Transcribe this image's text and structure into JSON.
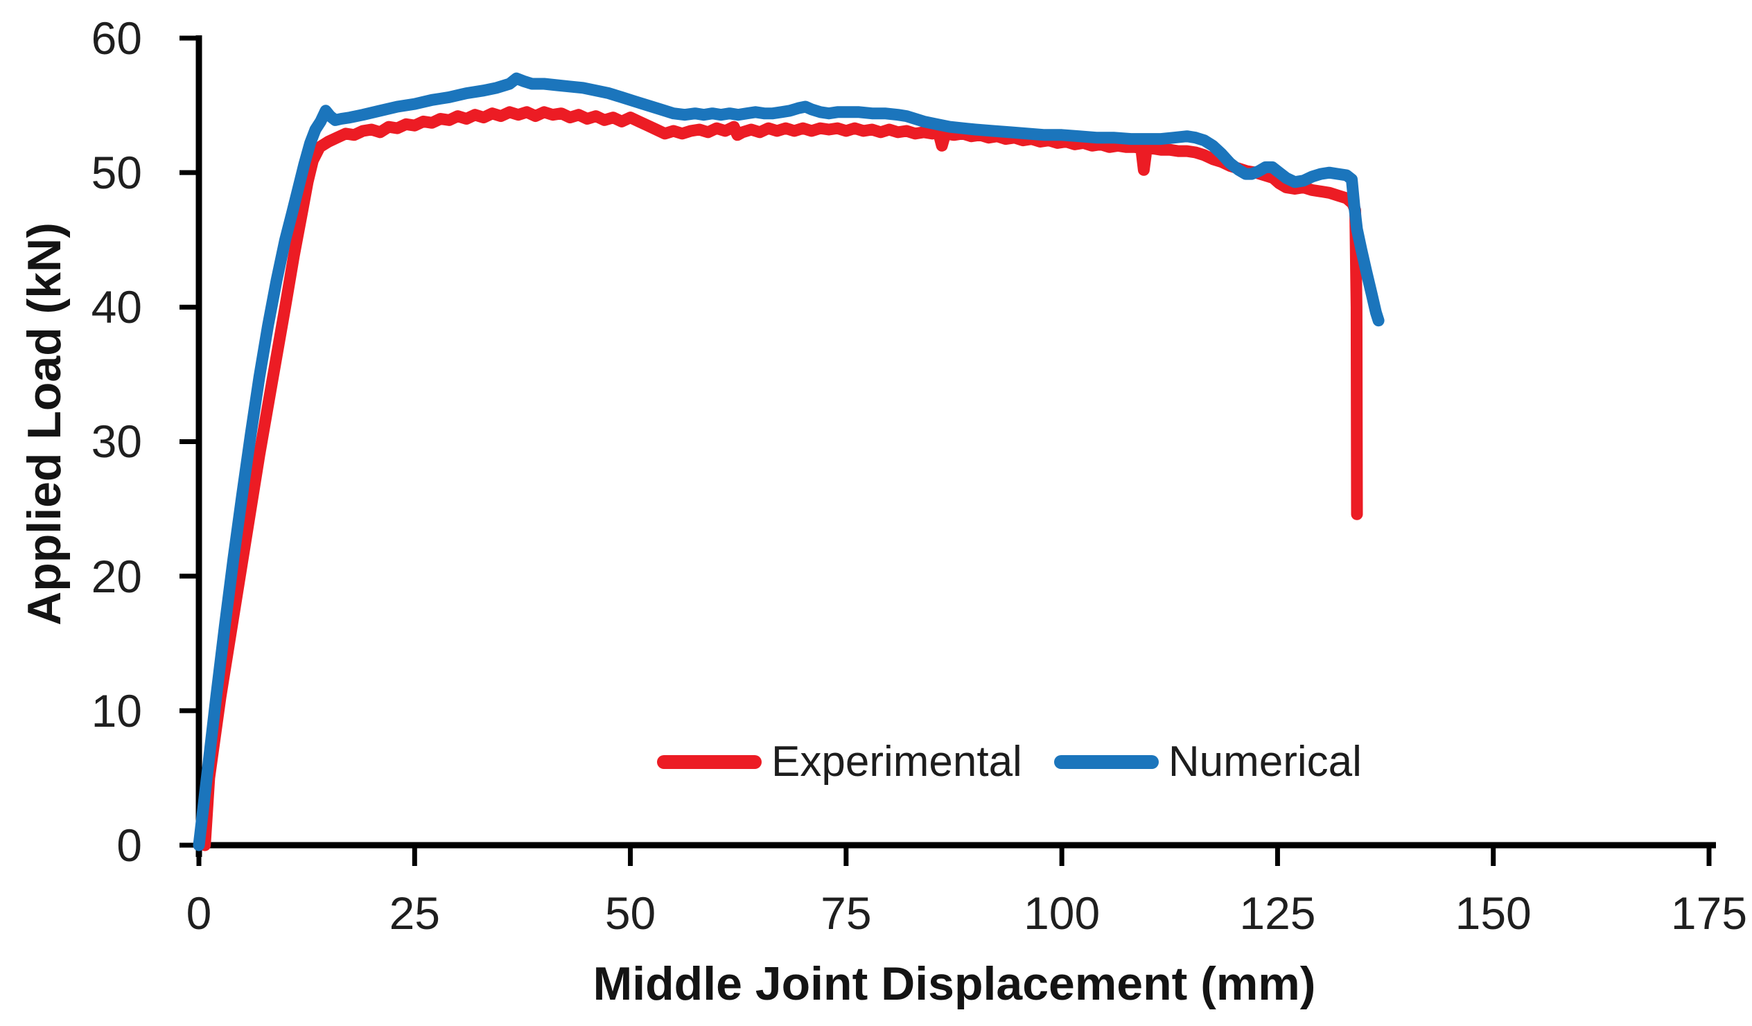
{
  "chart_data": {
    "type": "line",
    "title": "",
    "xlabel": "Middle Joint Displacement (mm)",
    "ylabel": "Applied Load (kN)",
    "xlim": [
      0,
      175
    ],
    "ylim": [
      0,
      60
    ],
    "x_ticks": [
      0,
      25,
      50,
      75,
      100,
      125,
      150,
      175
    ],
    "y_ticks": [
      0,
      10,
      20,
      30,
      40,
      50,
      60
    ],
    "grid": false,
    "legend_position": "inside-bottom-center",
    "axis_color": "#000000",
    "series": [
      {
        "name": "Experimental",
        "color": "#EC1C24",
        "stroke_width": 17,
        "points": [
          [
            0.7,
            0
          ],
          [
            1.2,
            5
          ],
          [
            2.5,
            11
          ],
          [
            4,
            17
          ],
          [
            5.5,
            23
          ],
          [
            7,
            29
          ],
          [
            8.5,
            34.5
          ],
          [
            10,
            40
          ],
          [
            11,
            43.8
          ],
          [
            12,
            47.2
          ],
          [
            12.6,
            49.3
          ],
          [
            13.2,
            50.9
          ],
          [
            14,
            51.9
          ],
          [
            15,
            52.3
          ],
          [
            16,
            52.6
          ],
          [
            17,
            52.9
          ],
          [
            18,
            52.8
          ],
          [
            19,
            53.1
          ],
          [
            20,
            53.2
          ],
          [
            21,
            53.0
          ],
          [
            22,
            53.4
          ],
          [
            23,
            53.3
          ],
          [
            24,
            53.6
          ],
          [
            25,
            53.5
          ],
          [
            26,
            53.8
          ],
          [
            27,
            53.7
          ],
          [
            28,
            54.0
          ],
          [
            29,
            53.9
          ],
          [
            30,
            54.2
          ],
          [
            31,
            54.0
          ],
          [
            32,
            54.3
          ],
          [
            33,
            54.1
          ],
          [
            34,
            54.4
          ],
          [
            35,
            54.2
          ],
          [
            36,
            54.5
          ],
          [
            37,
            54.3
          ],
          [
            38,
            54.5
          ],
          [
            39,
            54.2
          ],
          [
            40,
            54.5
          ],
          [
            41,
            54.3
          ],
          [
            42,
            54.4
          ],
          [
            43,
            54.1
          ],
          [
            44,
            54.3
          ],
          [
            45,
            54.0
          ],
          [
            46,
            54.2
          ],
          [
            47,
            53.9
          ],
          [
            48,
            54.1
          ],
          [
            49,
            53.8
          ],
          [
            50,
            54.1
          ],
          [
            51,
            53.8
          ],
          [
            52,
            53.5
          ],
          [
            53,
            53.2
          ],
          [
            54,
            52.9
          ],
          [
            55,
            53.1
          ],
          [
            56,
            52.9
          ],
          [
            57,
            53.1
          ],
          [
            58,
            53.2
          ],
          [
            59,
            53.0
          ],
          [
            60,
            53.3
          ],
          [
            61,
            53.1
          ],
          [
            62,
            53.4
          ],
          [
            62.4,
            52.8
          ],
          [
            63,
            53.0
          ],
          [
            64,
            53.2
          ],
          [
            65,
            53.0
          ],
          [
            66,
            53.3
          ],
          [
            67,
            53.1
          ],
          [
            68,
            53.3
          ],
          [
            69,
            53.1
          ],
          [
            70,
            53.3
          ],
          [
            71,
            53.1
          ],
          [
            72,
            53.3
          ],
          [
            73,
            53.2
          ],
          [
            74,
            53.3
          ],
          [
            75,
            53.1
          ],
          [
            76,
            53.3
          ],
          [
            77,
            53.1
          ],
          [
            78,
            53.2
          ],
          [
            79,
            53.0
          ],
          [
            80,
            53.2
          ],
          [
            81,
            53.0
          ],
          [
            82,
            53.1
          ],
          [
            83,
            52.9
          ],
          [
            84,
            53.0
          ],
          [
            85,
            52.9
          ],
          [
            85.7,
            53.0
          ],
          [
            86.1,
            52.0
          ],
          [
            86.5,
            52.9
          ],
          [
            87.5,
            52.8
          ],
          [
            88.5,
            52.9
          ],
          [
            89.5,
            52.7
          ],
          [
            90.5,
            52.8
          ],
          [
            91.5,
            52.6
          ],
          [
            92.5,
            52.7
          ],
          [
            93.5,
            52.5
          ],
          [
            94.5,
            52.6
          ],
          [
            95.5,
            52.4
          ],
          [
            96.5,
            52.5
          ],
          [
            97.5,
            52.3
          ],
          [
            98.5,
            52.4
          ],
          [
            99.5,
            52.2
          ],
          [
            100.5,
            52.3
          ],
          [
            101.5,
            52.1
          ],
          [
            102.5,
            52.2
          ],
          [
            103.5,
            52.0
          ],
          [
            104.5,
            52.1
          ],
          [
            105.5,
            51.9
          ],
          [
            106.5,
            52.0
          ],
          [
            107.5,
            51.9
          ],
          [
            108.5,
            51.9
          ],
          [
            109.2,
            51.8
          ],
          [
            109.5,
            50.2
          ],
          [
            109.8,
            51.7
          ],
          [
            110.5,
            51.8
          ],
          [
            111.5,
            51.7
          ],
          [
            112.5,
            51.7
          ],
          [
            113.5,
            51.6
          ],
          [
            114.5,
            51.6
          ],
          [
            115.5,
            51.5
          ],
          [
            116.5,
            51.3
          ],
          [
            117.5,
            51.0
          ],
          [
            118.5,
            50.8
          ],
          [
            119.5,
            50.5
          ],
          [
            120.5,
            50.3
          ],
          [
            121.5,
            50.1
          ],
          [
            122.5,
            50.0
          ],
          [
            123.5,
            49.8
          ],
          [
            124.5,
            49.6
          ],
          [
            125.2,
            49.2
          ],
          [
            126,
            48.9
          ],
          [
            127,
            48.8
          ],
          [
            128,
            48.9
          ],
          [
            129,
            48.7
          ],
          [
            130,
            48.6
          ],
          [
            131,
            48.5
          ],
          [
            132,
            48.3
          ],
          [
            133,
            48.1
          ],
          [
            133.7,
            47.7
          ],
          [
            134,
            47.2
          ],
          [
            134.15,
            40
          ],
          [
            134.2,
            24.6
          ]
        ]
      },
      {
        "name": "Numerical",
        "color": "#1B75BC",
        "stroke_width": 17,
        "points": [
          [
            0,
            0
          ],
          [
            1,
            5.5
          ],
          [
            2,
            11
          ],
          [
            3,
            16.3
          ],
          [
            4,
            21.3
          ],
          [
            5,
            26
          ],
          [
            6,
            30.5
          ],
          [
            7,
            34.8
          ],
          [
            8,
            38.6
          ],
          [
            9,
            42
          ],
          [
            10,
            45
          ],
          [
            10.8,
            47
          ],
          [
            11.5,
            48.8
          ],
          [
            12.2,
            50.6
          ],
          [
            12.9,
            52.2
          ],
          [
            13.5,
            53.2
          ],
          [
            14.1,
            53.8
          ],
          [
            14.7,
            54.6
          ],
          [
            15.2,
            54.2
          ],
          [
            15.8,
            53.9
          ],
          [
            16.5,
            54.0
          ],
          [
            17.5,
            54.1
          ],
          [
            19,
            54.3
          ],
          [
            21,
            54.6
          ],
          [
            23,
            54.9
          ],
          [
            25,
            55.1
          ],
          [
            27,
            55.4
          ],
          [
            29,
            55.6
          ],
          [
            31,
            55.9
          ],
          [
            33,
            56.1
          ],
          [
            34.5,
            56.3
          ],
          [
            36,
            56.6
          ],
          [
            36.8,
            57.0
          ],
          [
            37.6,
            56.8
          ],
          [
            38.6,
            56.6
          ],
          [
            40,
            56.6
          ],
          [
            41.5,
            56.5
          ],
          [
            43,
            56.4
          ],
          [
            44.5,
            56.3
          ],
          [
            46,
            56.1
          ],
          [
            47.5,
            55.9
          ],
          [
            49,
            55.6
          ],
          [
            50.5,
            55.3
          ],
          [
            52,
            55.0
          ],
          [
            53.5,
            54.7
          ],
          [
            55,
            54.4
          ],
          [
            56.3,
            54.3
          ],
          [
            57.5,
            54.4
          ],
          [
            58.5,
            54.3
          ],
          [
            59.5,
            54.4
          ],
          [
            60.5,
            54.3
          ],
          [
            61.5,
            54.4
          ],
          [
            62.5,
            54.3
          ],
          [
            63.5,
            54.4
          ],
          [
            64.5,
            54.5
          ],
          [
            65.5,
            54.4
          ],
          [
            66.5,
            54.4
          ],
          [
            67.5,
            54.5
          ],
          [
            68.5,
            54.6
          ],
          [
            69.5,
            54.8
          ],
          [
            70.3,
            54.9
          ],
          [
            71,
            54.7
          ],
          [
            72,
            54.5
          ],
          [
            73,
            54.4
          ],
          [
            74,
            54.5
          ],
          [
            75,
            54.5
          ],
          [
            76.5,
            54.5
          ],
          [
            78,
            54.4
          ],
          [
            79.5,
            54.4
          ],
          [
            81,
            54.3
          ],
          [
            82,
            54.2
          ],
          [
            83,
            54.0
          ],
          [
            84,
            53.8
          ],
          [
            85.5,
            53.6
          ],
          [
            87,
            53.4
          ],
          [
            88.5,
            53.3
          ],
          [
            90,
            53.2
          ],
          [
            92,
            53.1
          ],
          [
            94,
            53.0
          ],
          [
            96,
            52.9
          ],
          [
            98,
            52.8
          ],
          [
            100,
            52.8
          ],
          [
            102,
            52.7
          ],
          [
            104,
            52.6
          ],
          [
            106,
            52.6
          ],
          [
            108,
            52.5
          ],
          [
            110,
            52.5
          ],
          [
            111.5,
            52.5
          ],
          [
            113,
            52.6
          ],
          [
            114.5,
            52.7
          ],
          [
            115.5,
            52.6
          ],
          [
            116.5,
            52.4
          ],
          [
            117.5,
            52.0
          ],
          [
            118.5,
            51.4
          ],
          [
            119.5,
            50.7
          ],
          [
            120.5,
            50.2
          ],
          [
            121.3,
            49.9
          ],
          [
            122,
            49.9
          ],
          [
            122.8,
            50.1
          ],
          [
            123.6,
            50.4
          ],
          [
            124.4,
            50.4
          ],
          [
            125.2,
            50.0
          ],
          [
            126,
            49.6
          ],
          [
            127,
            49.3
          ],
          [
            128,
            49.4
          ],
          [
            129,
            49.7
          ],
          [
            130,
            49.9
          ],
          [
            131,
            50.0
          ],
          [
            132,
            49.9
          ],
          [
            133,
            49.8
          ],
          [
            133.6,
            49.5
          ],
          [
            133.9,
            47.5
          ],
          [
            134.2,
            45.8
          ],
          [
            134.7,
            44.3
          ],
          [
            135.3,
            42.6
          ],
          [
            135.9,
            41.0
          ],
          [
            136.4,
            39.6
          ],
          [
            136.7,
            39.0
          ]
        ]
      }
    ]
  },
  "legend": {
    "items": [
      {
        "label": "Experimental",
        "color": "#EC1C24"
      },
      {
        "label": "Numerical",
        "color": "#1B75BC"
      }
    ]
  }
}
